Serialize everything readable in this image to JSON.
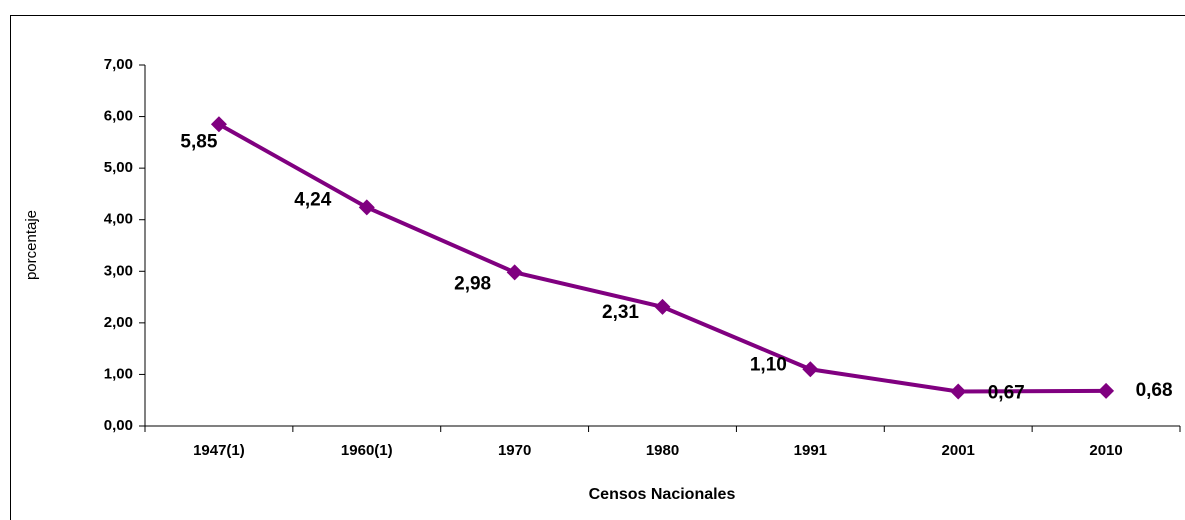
{
  "chart_data": {
    "type": "line",
    "y_label": "porcentaje",
    "x_label": "Censos Nacionales",
    "categories": [
      "1947(1)",
      "1960(1)",
      "1970",
      "1980",
      "1991",
      "2001",
      "2010"
    ],
    "series": [
      {
        "name": "porcentaje",
        "color": "#800080",
        "values": [
          5.85,
          4.24,
          2.98,
          2.31,
          1.1,
          0.67,
          0.68
        ],
        "value_labels": [
          "5,85",
          "4,24",
          "2,98",
          "2,31",
          "1,10",
          "0,67",
          "0,68"
        ]
      }
    ],
    "ylim": [
      0,
      7
    ],
    "yticks": [
      {
        "value": 0,
        "label": "0,00"
      },
      {
        "value": 1,
        "label": "1,00"
      },
      {
        "value": 2,
        "label": "2,00"
      },
      {
        "value": 3,
        "label": "3,00"
      },
      {
        "value": 4,
        "label": "4,00"
      },
      {
        "value": 5,
        "label": "5,00"
      },
      {
        "value": 6,
        "label": "6,00"
      },
      {
        "value": 7,
        "label": "7,00"
      }
    ],
    "grid": false
  }
}
